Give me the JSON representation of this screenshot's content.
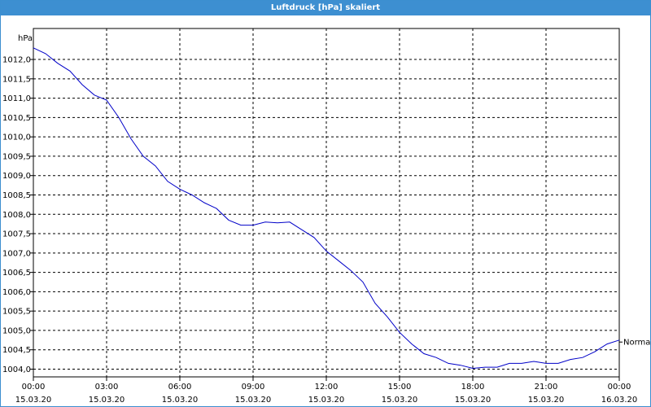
{
  "window": {
    "title": "Luftdruck [hPa] skaliert"
  },
  "chart_data": {
    "type": "line",
    "title": "Luftdruck [hPa] skaliert",
    "ylabel": "hPa",
    "ylim": [
      1003.8,
      1012.8
    ],
    "yticks": [
      1004.0,
      1004.5,
      1005.0,
      1005.5,
      1006.0,
      1006.5,
      1007.0,
      1007.5,
      1008.0,
      1008.5,
      1009.0,
      1009.5,
      1010.0,
      1010.5,
      1011.0,
      1011.5,
      1012.0
    ],
    "ytick_labels": [
      "1004,0",
      "1004,5",
      "1005,0",
      "1005,5",
      "1006,0",
      "1006,5",
      "1007,0",
      "1007,5",
      "1008,0",
      "1008,5",
      "1009,0",
      "1009,5",
      "1010,0",
      "1010,5",
      "1011,0",
      "1011,5",
      "1012,0"
    ],
    "xlim": [
      0,
      24
    ],
    "xticks": [
      0,
      3,
      6,
      9,
      12,
      15,
      18,
      21,
      24
    ],
    "xtick_labels": [
      [
        "00:00",
        "15.03.20"
      ],
      [
        "03:00",
        "15.03.20"
      ],
      [
        "06:00",
        "15.03.20"
      ],
      [
        "09:00",
        "15.03.20"
      ],
      [
        "12:00",
        "15.03.20"
      ],
      [
        "15:00",
        "15.03.20"
      ],
      [
        "18:00",
        "15.03.20"
      ],
      [
        "21:00",
        "15.03.20"
      ],
      [
        "00:00",
        "16.03.20"
      ]
    ],
    "grid": true,
    "line_color": "#0000c8",
    "reference_line": {
      "label": "Normal",
      "value": 1004.7
    },
    "series": [
      {
        "x": [
          0,
          0.5,
          1,
          1.5,
          2,
          2.5,
          3,
          3.5,
          4,
          4.5,
          5,
          5.5,
          6,
          6.5,
          7,
          7.5,
          8,
          8.5,
          9,
          9.5,
          10,
          10.5,
          11,
          11.5,
          12,
          12.5,
          13,
          13.5,
          14,
          14.5,
          15,
          15.5,
          16,
          16.5,
          17,
          17.5,
          18,
          18.5,
          19,
          19.5,
          20,
          20.5,
          21,
          21.5,
          22,
          22.5,
          23,
          23.5,
          24
        ],
        "values": [
          1012.3,
          1012.15,
          1011.9,
          1011.7,
          1011.35,
          1011.08,
          1010.95,
          1010.5,
          1009.95,
          1009.5,
          1009.25,
          1008.85,
          1008.65,
          1008.5,
          1008.3,
          1008.15,
          1007.85,
          1007.72,
          1007.72,
          1007.8,
          1007.78,
          1007.8,
          1007.6,
          1007.4,
          1007.05,
          1006.8,
          1006.55,
          1006.25,
          1005.7,
          1005.35,
          1004.95,
          1004.65,
          1004.4,
          1004.3,
          1004.15,
          1004.1,
          1004.02,
          1004.05,
          1004.05,
          1004.15,
          1004.15,
          1004.2,
          1004.15,
          1004.15,
          1004.25,
          1004.3,
          1004.45,
          1004.65,
          1004.75
        ]
      }
    ]
  }
}
